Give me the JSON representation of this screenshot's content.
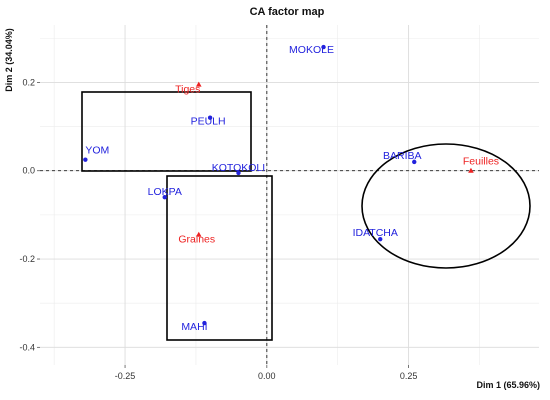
{
  "chart_data": {
    "type": "scatter",
    "title": "CA factor map",
    "xlabel": "Dim 1 (65.96%)",
    "ylabel": "Dim 2 (34.04%)",
    "xlim": [
      -0.4,
      0.48
    ],
    "ylim": [
      -0.44,
      0.33
    ],
    "x_ticks": [
      -0.25,
      0.0,
      0.25
    ],
    "x_tick_labels": [
      "-0.25",
      "0.00",
      "0.25"
    ],
    "y_ticks": [
      -0.4,
      -0.2,
      0.0,
      0.2
    ],
    "y_tick_labels": [
      "-0.4",
      "-0.2",
      "0.0",
      "0.2"
    ],
    "grid": true,
    "series": [
      {
        "marker": "circle",
        "color": "#2222dd",
        "points": [
          {
            "label": "MOKOLE",
            "x": 0.1,
            "y": 0.28
          },
          {
            "label": "PEULH",
            "x": -0.1,
            "y": 0.12
          },
          {
            "label": "YOM",
            "x": -0.32,
            "y": 0.025
          },
          {
            "label": "KOTOKOLI",
            "x": -0.05,
            "y": -0.005
          },
          {
            "label": "LOKPA",
            "x": -0.18,
            "y": -0.06
          },
          {
            "label": "MAHI",
            "x": -0.11,
            "y": -0.345
          },
          {
            "label": "BARIBA",
            "x": 0.26,
            "y": 0.02
          },
          {
            "label": "IDATCHA",
            "x": 0.2,
            "y": -0.155
          }
        ]
      },
      {
        "marker": "triangle",
        "color": "#ee2222",
        "points": [
          {
            "label": "Tiges",
            "x": -0.12,
            "y": 0.195
          },
          {
            "label": "Graines",
            "x": -0.12,
            "y": -0.145
          },
          {
            "label": "Feuilles",
            "x": 0.36,
            "y": 0.0
          }
        ]
      }
    ]
  }
}
